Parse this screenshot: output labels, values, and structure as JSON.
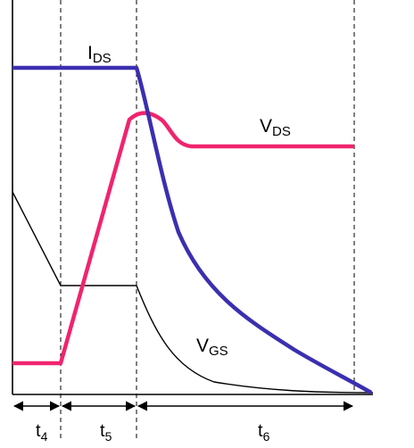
{
  "waveforms": {
    "ids": {
      "label_main": "I",
      "label_sub": "DS",
      "color": "#3b2fb0"
    },
    "vds": {
      "label_main": "V",
      "label_sub": "DS",
      "color": "#f0246e"
    },
    "vgs": {
      "label_main": "V",
      "label_sub": "GS",
      "color": "#000000"
    }
  },
  "intervals": [
    {
      "label_main": "t",
      "label_sub": "4"
    },
    {
      "label_main": "t",
      "label_sub": "5"
    },
    {
      "label_main": "t",
      "label_sub": "6"
    }
  ],
  "colors": {
    "axis": "#000000",
    "dashed": "#000000",
    "arrow": "#000000"
  }
}
